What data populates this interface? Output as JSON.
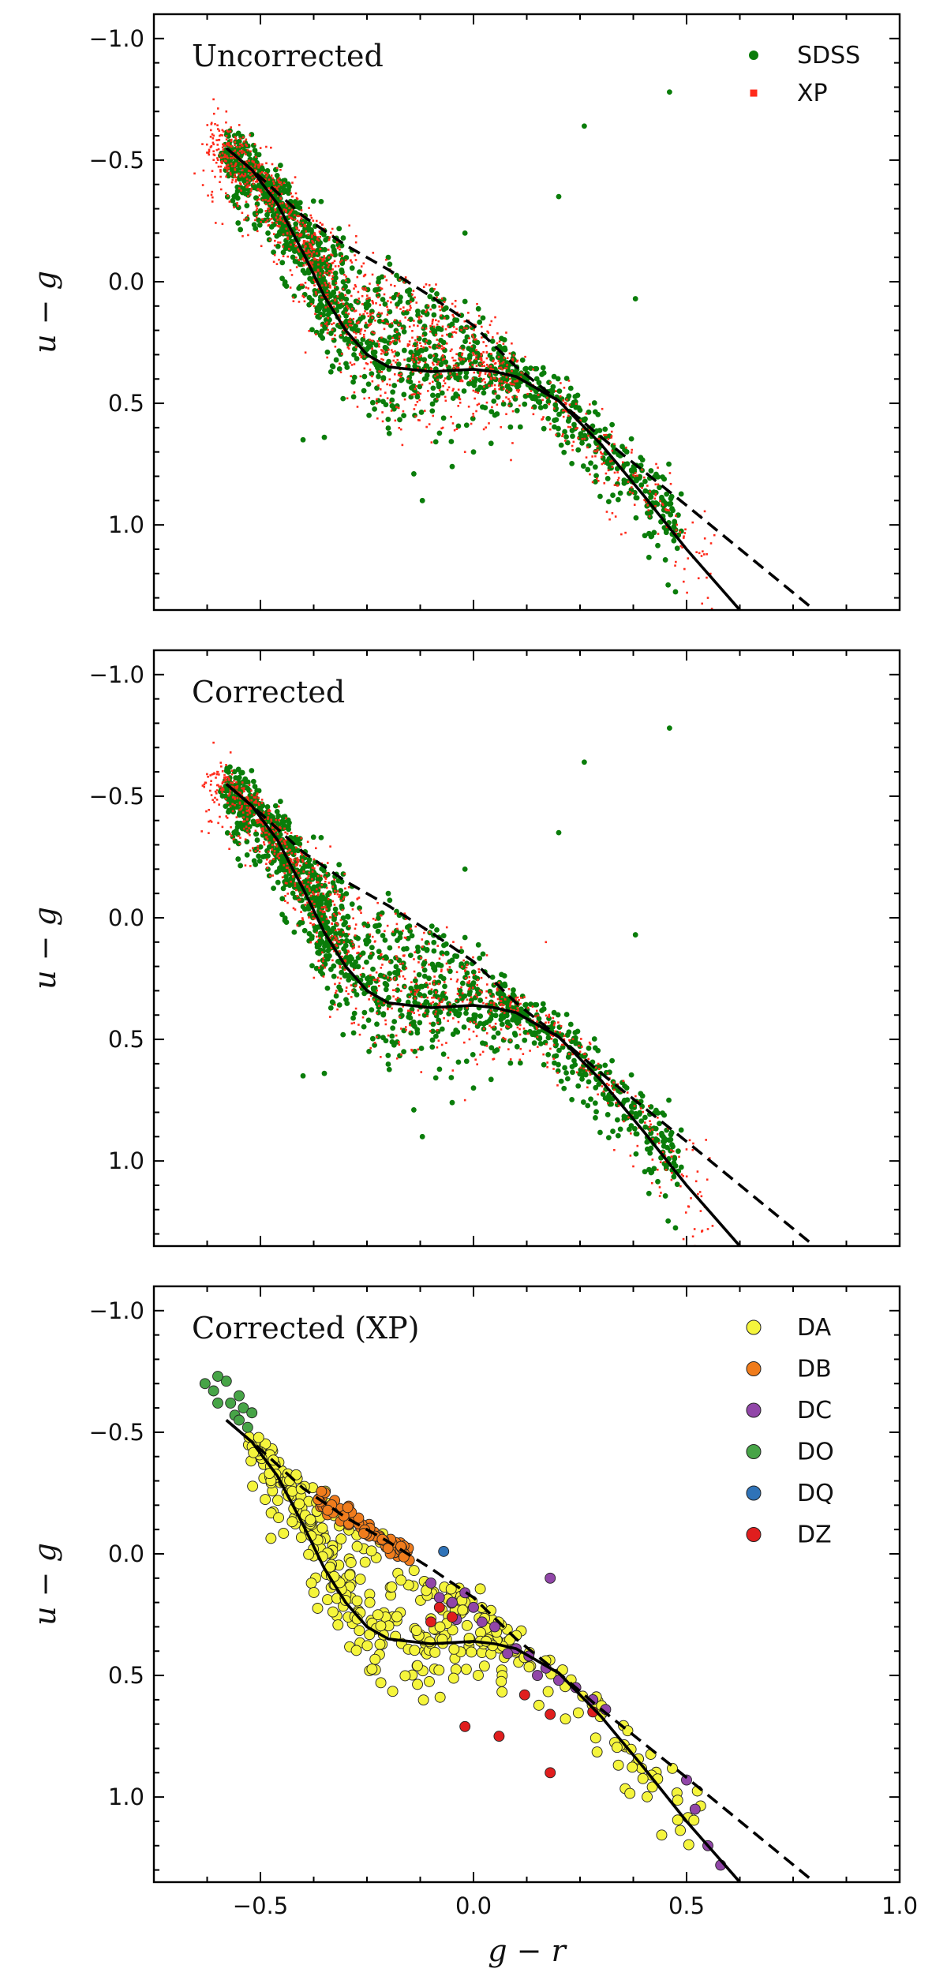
{
  "chart_data": [
    {
      "type": "scatter",
      "title": "Uncorrected",
      "xlabel": "g − r",
      "ylabel": "u − g",
      "xlim": [
        -0.75,
        1.0
      ],
      "ylim": [
        1.35,
        -1.1
      ],
      "y_inverted": true,
      "x_ticks": [
        "−0.5",
        "0.0",
        "0.5",
        "1.0"
      ],
      "y_ticks": [
        "−1.0",
        "−0.5",
        "0.0",
        "0.5",
        "1.0"
      ],
      "show_x_tick_labels": false,
      "legend": {
        "placement": "top-right",
        "entries": [
          "SDSS",
          "XP"
        ]
      },
      "series": [
        {
          "name": "SDSS",
          "color": "#0a7d0a",
          "marker": "circle",
          "kind": "band",
          "count": 1400,
          "seed": 11,
          "spread": 0.09,
          "segments": [
            {
              "x0": -0.58,
              "x1": -0.3,
              "w": 0.5
            },
            {
              "x0": -0.3,
              "x1": 0.1,
              "w": 0.3
            },
            {
              "x0": 0.1,
              "x1": 0.48,
              "w": 0.2
            }
          ],
          "outliers": [
            [
              0.46,
              -0.78
            ],
            [
              0.26,
              -0.64
            ],
            [
              0.2,
              -0.35
            ],
            [
              0.38,
              0.07
            ],
            [
              -0.4,
              0.65
            ],
            [
              -0.35,
              0.64
            ],
            [
              -0.14,
              0.79
            ],
            [
              -0.05,
              0.76
            ],
            [
              0.0,
              0.7
            ],
            [
              -0.12,
              0.9
            ],
            [
              -0.2,
              -0.1
            ],
            [
              -0.02,
              -0.2
            ]
          ]
        },
        {
          "name": "XP",
          "color": "#ff2a1a",
          "marker": "square",
          "kind": "band",
          "count": 1500,
          "seed": 29,
          "spread": 0.11,
          "segments": [
            {
              "x0": -0.62,
              "x1": -0.3,
              "w": 0.45
            },
            {
              "x0": -0.3,
              "x1": 0.1,
              "w": 0.4
            },
            {
              "x0": 0.1,
              "x1": 0.55,
              "w": 0.15
            }
          ],
          "outliers": [
            [
              -0.61,
              -0.75
            ],
            [
              -0.58,
              -0.7
            ],
            [
              -0.02,
              0.7
            ],
            [
              0.55,
              1.3
            ]
          ]
        }
      ]
    },
    {
      "type": "scatter",
      "title": "Corrected",
      "xlabel": "g − r",
      "ylabel": "u − g",
      "xlim": [
        -0.75,
        1.0
      ],
      "ylim": [
        1.35,
        -1.1
      ],
      "y_inverted": true,
      "x_ticks": [
        "−0.5",
        "0.0",
        "0.5",
        "1.0"
      ],
      "y_ticks": [
        "−1.0",
        "−0.5",
        "0.0",
        "0.5",
        "1.0"
      ],
      "show_x_tick_labels": false,
      "series": [
        {
          "name": "SDSS",
          "color": "#0a7d0a",
          "marker": "circle",
          "kind": "band",
          "count": 1400,
          "seed": 11,
          "spread": 0.09,
          "segments": [
            {
              "x0": -0.58,
              "x1": -0.3,
              "w": 0.5
            },
            {
              "x0": -0.3,
              "x1": 0.1,
              "w": 0.3
            },
            {
              "x0": 0.1,
              "x1": 0.48,
              "w": 0.2
            }
          ],
          "outliers": [
            [
              0.46,
              -0.78
            ],
            [
              0.26,
              -0.64
            ],
            [
              0.2,
              -0.35
            ],
            [
              0.38,
              0.07
            ],
            [
              -0.4,
              0.65
            ],
            [
              -0.35,
              0.64
            ],
            [
              -0.14,
              0.79
            ],
            [
              -0.05,
              0.76
            ],
            [
              0.0,
              0.7
            ],
            [
              -0.12,
              0.9
            ],
            [
              -0.2,
              -0.1
            ],
            [
              -0.02,
              -0.2
            ]
          ]
        },
        {
          "name": "XP",
          "color": "#ff2a1a",
          "marker": "square",
          "kind": "band",
          "count": 1100,
          "seed": 47,
          "spread": 0.07,
          "segments": [
            {
              "x0": -0.62,
              "x1": -0.3,
              "w": 0.5
            },
            {
              "x0": -0.3,
              "x1": 0.1,
              "w": 0.35
            },
            {
              "x0": 0.1,
              "x1": 0.55,
              "w": 0.15
            }
          ],
          "outliers": [
            [
              -0.61,
              -0.72
            ],
            [
              -0.57,
              -0.68
            ],
            [
              0.17,
              0.1
            ],
            [
              -0.02,
              0.75
            ],
            [
              0.55,
              1.28
            ]
          ]
        }
      ]
    },
    {
      "type": "scatter",
      "title": "Corrected (XP)",
      "xlabel": "g − r",
      "ylabel": "u − g",
      "xlim": [
        -0.75,
        1.0
      ],
      "ylim": [
        1.35,
        -1.1
      ],
      "y_inverted": true,
      "x_ticks": [
        "−0.5",
        "0.0",
        "0.5",
        "1.0"
      ],
      "y_ticks": [
        "−1.0",
        "−0.5",
        "0.0",
        "0.5",
        "1.0"
      ],
      "show_x_tick_labels": true,
      "legend": {
        "placement": "top-right",
        "entries": [
          "DA",
          "DB",
          "DC",
          "DO",
          "DQ",
          "DZ"
        ]
      },
      "series": [
        {
          "name": "DA",
          "color": "#f5f53c",
          "marker": "circle",
          "kind": "band",
          "count": 420,
          "seed": 61,
          "spread": 0.055,
          "segments": [
            {
              "x0": -0.52,
              "x1": -0.3,
              "w": 0.35
            },
            {
              "x0": -0.3,
              "x1": 0.1,
              "w": 0.5
            },
            {
              "x0": 0.1,
              "x1": 0.52,
              "w": 0.15
            }
          ]
        },
        {
          "name": "DB",
          "color": "#f07c1c",
          "marker": "circle",
          "kind": "dashed",
          "count": 70,
          "seed": 73,
          "spread": 0.035,
          "segments": [
            {
              "x0": -0.36,
              "x1": -0.15,
              "w": 1.0
            }
          ]
        },
        {
          "name": "DC",
          "color": "#9146a8",
          "marker": "circle",
          "kind": "list",
          "points": [
            [
              -0.1,
              0.12
            ],
            [
              -0.08,
              0.18
            ],
            [
              -0.05,
              0.2
            ],
            [
              -0.02,
              0.16
            ],
            [
              0.0,
              0.22
            ],
            [
              0.02,
              0.28
            ],
            [
              0.05,
              0.3
            ],
            [
              0.1,
              0.39
            ],
            [
              0.13,
              0.42
            ],
            [
              0.17,
              0.47
            ],
            [
              0.2,
              0.52
            ],
            [
              0.24,
              0.55
            ],
            [
              0.28,
              0.6
            ],
            [
              0.31,
              0.64
            ],
            [
              0.18,
              0.1
            ],
            [
              0.5,
              0.93
            ],
            [
              0.52,
              1.05
            ],
            [
              0.55,
              1.2
            ],
            [
              0.58,
              1.28
            ],
            [
              -0.04,
              0.27
            ],
            [
              0.08,
              0.41
            ],
            [
              0.15,
              0.5
            ]
          ]
        },
        {
          "name": "DO",
          "color": "#47a447",
          "marker": "circle",
          "kind": "list",
          "points": [
            [
              -0.63,
              -0.7
            ],
            [
              -0.61,
              -0.67
            ],
            [
              -0.6,
              -0.62
            ],
            [
              -0.58,
              -0.71
            ],
            [
              -0.57,
              -0.62
            ],
            [
              -0.56,
              -0.57
            ],
            [
              -0.55,
              -0.65
            ],
            [
              -0.54,
              -0.6
            ],
            [
              -0.53,
              -0.52
            ],
            [
              -0.52,
              -0.58
            ],
            [
              -0.6,
              -0.73
            ],
            [
              -0.55,
              -0.55
            ]
          ]
        },
        {
          "name": "DQ",
          "color": "#2f73b8",
          "marker": "circle",
          "kind": "list",
          "points": [
            [
              -0.07,
              -0.01
            ]
          ]
        },
        {
          "name": "DZ",
          "color": "#e01e1e",
          "marker": "circle",
          "kind": "list",
          "points": [
            [
              -0.08,
              0.22
            ],
            [
              -0.05,
              0.26
            ],
            [
              -0.1,
              0.28
            ],
            [
              -0.02,
              0.71
            ],
            [
              0.06,
              0.75
            ],
            [
              0.18,
              0.9
            ],
            [
              0.18,
              0.66
            ],
            [
              0.28,
              0.65
            ],
            [
              0.12,
              0.58
            ]
          ]
        }
      ]
    }
  ],
  "reference_curves": {
    "solid": [
      [
        -0.58,
        -0.55
      ],
      [
        -0.52,
        -0.46
      ],
      [
        -0.46,
        -0.32
      ],
      [
        -0.4,
        -0.12
      ],
      [
        -0.35,
        0.06
      ],
      [
        -0.3,
        0.2
      ],
      [
        -0.25,
        0.3
      ],
      [
        -0.2,
        0.35
      ],
      [
        -0.1,
        0.37
      ],
      [
        0.0,
        0.36
      ],
      [
        0.05,
        0.37
      ],
      [
        0.1,
        0.39
      ],
      [
        0.2,
        0.49
      ],
      [
        0.3,
        0.67
      ],
      [
        0.4,
        0.88
      ],
      [
        0.5,
        1.1
      ],
      [
        0.6,
        1.3
      ],
      [
        0.635,
        1.37
      ]
    ],
    "dashed": [
      [
        -0.58,
        -0.55
      ],
      [
        -0.5,
        -0.43
      ],
      [
        -0.4,
        -0.27
      ],
      [
        -0.3,
        -0.15
      ],
      [
        -0.2,
        -0.05
      ],
      [
        -0.1,
        0.06
      ],
      [
        0.0,
        0.18
      ],
      [
        0.1,
        0.35
      ],
      [
        0.2,
        0.49
      ],
      [
        0.3,
        0.64
      ],
      [
        0.5,
        0.92
      ],
      [
        0.8,
        1.35
      ]
    ]
  }
}
